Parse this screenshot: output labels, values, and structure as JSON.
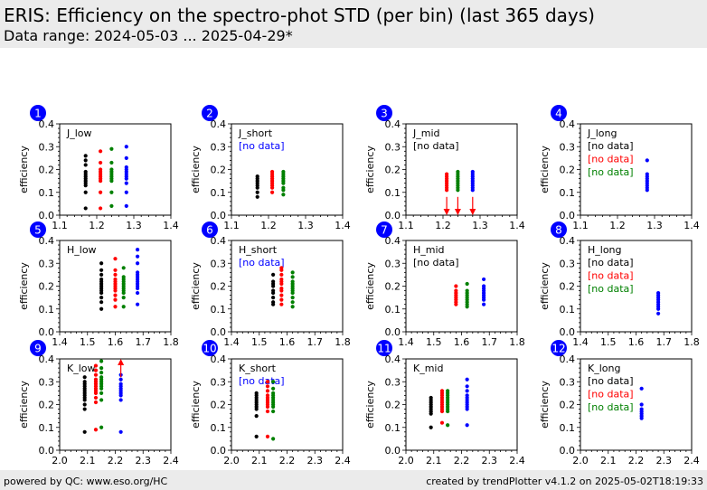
{
  "header": {
    "title": "ERIS: Efficiency on the spectro-phot STD (per bin) (last 365 days)",
    "subtitle": "Data range: 2024-05-03 ... 2025-04-29*"
  },
  "footer": {
    "left": "powered by QC: www.eso.org/HC",
    "right": "created by trendPlotter v4.1.2 on 2025-05-02T18:19:33"
  },
  "colors": {
    "black": "#000000",
    "red": "#ff0000",
    "green": "#008000",
    "blue": "#0000ff",
    "badge": "#0000ff",
    "header_bg": "#ebebeb"
  },
  "chart_data": [
    {
      "type": "scatter",
      "id": 1,
      "label": "J_low",
      "ylabel": "efficiency",
      "xlim": [
        1.1,
        1.4
      ],
      "ylim": [
        0.0,
        0.4
      ],
      "xticks": [
        "1.1",
        "1.2",
        "1.3",
        "1.4"
      ],
      "yticks": [
        "0.0",
        "0.1",
        "0.2",
        "0.3",
        "0.4"
      ],
      "notes": [],
      "series": [
        {
          "color": "black",
          "x": 1.17,
          "y": [
            0.03,
            0.1,
            0.13,
            0.14,
            0.15,
            0.16,
            0.17,
            0.18,
            0.19,
            0.22,
            0.24,
            0.26
          ]
        },
        {
          "color": "red",
          "x": 1.21,
          "y": [
            0.03,
            0.1,
            0.15,
            0.16,
            0.17,
            0.18,
            0.19,
            0.2,
            0.23,
            0.28
          ]
        },
        {
          "color": "green",
          "x": 1.24,
          "y": [
            0.04,
            0.1,
            0.15,
            0.16,
            0.17,
            0.18,
            0.19,
            0.2,
            0.23,
            0.29
          ]
        },
        {
          "color": "blue",
          "x": 1.28,
          "y": [
            0.04,
            0.1,
            0.14,
            0.16,
            0.17,
            0.18,
            0.19,
            0.2,
            0.21,
            0.25,
            0.3
          ]
        }
      ],
      "arrows": []
    },
    {
      "type": "scatter",
      "id": 2,
      "label": "J_short",
      "ylabel": "efficiency",
      "xlim": [
        1.1,
        1.4
      ],
      "ylim": [
        0.0,
        0.4
      ],
      "xticks": [
        "1.1",
        "1.2",
        "1.3",
        "1.4"
      ],
      "yticks": [
        "0.0",
        "0.1",
        "0.2",
        "0.3",
        "0.4"
      ],
      "notes": [
        {
          "text": "[no data]",
          "color": "blue"
        }
      ],
      "series": [
        {
          "color": "black",
          "x": 1.17,
          "y": [
            0.08,
            0.1,
            0.12,
            0.13,
            0.14,
            0.15,
            0.16,
            0.17
          ]
        },
        {
          "color": "red",
          "x": 1.21,
          "y": [
            0.1,
            0.12,
            0.13,
            0.14,
            0.15,
            0.16,
            0.17,
            0.18,
            0.19
          ]
        },
        {
          "color": "green",
          "x": 1.24,
          "y": [
            0.09,
            0.11,
            0.12,
            0.14,
            0.15,
            0.16,
            0.17,
            0.18,
            0.19
          ]
        }
      ],
      "arrows": []
    },
    {
      "type": "scatter",
      "id": 3,
      "label": "J_mid",
      "ylabel": "efficiency",
      "xlim": [
        1.1,
        1.4
      ],
      "ylim": [
        0.0,
        0.4
      ],
      "xticks": [
        "1.1",
        "1.2",
        "1.3",
        "1.4"
      ],
      "yticks": [
        "0.0",
        "0.1",
        "0.2",
        "0.3",
        "0.4"
      ],
      "notes": [
        {
          "text": "[no data]",
          "color": "black"
        }
      ],
      "series": [
        {
          "color": "red",
          "x": 1.21,
          "y": [
            0.11,
            0.12,
            0.13,
            0.14,
            0.15,
            0.16,
            0.17,
            0.18
          ]
        },
        {
          "color": "green",
          "x": 1.24,
          "y": [
            0.11,
            0.12,
            0.13,
            0.14,
            0.15,
            0.16,
            0.17,
            0.18,
            0.19
          ]
        },
        {
          "color": "blue",
          "x": 1.28,
          "y": [
            0.11,
            0.12,
            0.13,
            0.14,
            0.15,
            0.16,
            0.17,
            0.18,
            0.19
          ]
        }
      ],
      "arrows": [
        {
          "color": "red",
          "x": 1.21,
          "from": 0.08,
          "to": 0.0
        },
        {
          "color": "red",
          "x": 1.24,
          "from": 0.08,
          "to": 0.0
        },
        {
          "color": "red",
          "x": 1.28,
          "from": 0.08,
          "to": 0.0
        }
      ]
    },
    {
      "type": "scatter",
      "id": 4,
      "label": "J_long",
      "ylabel": "efficiency",
      "xlim": [
        1.1,
        1.4
      ],
      "ylim": [
        0.0,
        0.4
      ],
      "xticks": [
        "1.1",
        "1.2",
        "1.3",
        "1.4"
      ],
      "yticks": [
        "0.0",
        "0.1",
        "0.2",
        "0.3",
        "0.4"
      ],
      "notes": [
        {
          "text": "[no data]",
          "color": "black"
        },
        {
          "text": "[no data]",
          "color": "red"
        },
        {
          "text": "[no data]",
          "color": "green"
        }
      ],
      "series": [
        {
          "color": "blue",
          "x": 1.28,
          "y": [
            0.11,
            0.12,
            0.13,
            0.14,
            0.15,
            0.16,
            0.17,
            0.18,
            0.24
          ]
        }
      ],
      "arrows": []
    },
    {
      "type": "scatter",
      "id": 5,
      "label": "H_low",
      "ylabel": "efficiency",
      "xlim": [
        1.4,
        1.8
      ],
      "ylim": [
        0.0,
        0.4
      ],
      "xticks": [
        "1.4",
        "1.5",
        "1.6",
        "1.7",
        "1.8"
      ],
      "yticks": [
        "0.0",
        "0.1",
        "0.2",
        "0.3",
        "0.4"
      ],
      "notes": [],
      "series": [
        {
          "color": "black",
          "x": 1.55,
          "y": [
            0.1,
            0.13,
            0.15,
            0.17,
            0.18,
            0.19,
            0.2,
            0.21,
            0.22,
            0.23,
            0.25,
            0.27,
            0.3
          ]
        },
        {
          "color": "red",
          "x": 1.6,
          "y": [
            0.11,
            0.14,
            0.16,
            0.18,
            0.19,
            0.2,
            0.21,
            0.22,
            0.23,
            0.25,
            0.27,
            0.32
          ]
        },
        {
          "color": "green",
          "x": 1.63,
          "y": [
            0.11,
            0.15,
            0.17,
            0.18,
            0.19,
            0.2,
            0.21,
            0.22,
            0.23,
            0.24,
            0.28
          ]
        },
        {
          "color": "blue",
          "x": 1.68,
          "y": [
            0.12,
            0.17,
            0.19,
            0.2,
            0.21,
            0.22,
            0.23,
            0.24,
            0.25,
            0.26,
            0.3,
            0.33,
            0.36
          ]
        }
      ],
      "arrows": []
    },
    {
      "type": "scatter",
      "id": 6,
      "label": "H_short",
      "ylabel": "efficiency",
      "xlim": [
        1.4,
        1.8
      ],
      "ylim": [
        0.0,
        0.4
      ],
      "xticks": [
        "1.4",
        "1.5",
        "1.6",
        "1.7",
        "1.8"
      ],
      "yticks": [
        "0.0",
        "0.1",
        "0.2",
        "0.3",
        "0.4"
      ],
      "notes": [
        {
          "text": "[no data]",
          "color": "blue"
        }
      ],
      "series": [
        {
          "color": "black",
          "x": 1.55,
          "y": [
            0.12,
            0.13,
            0.15,
            0.17,
            0.18,
            0.2,
            0.21,
            0.22,
            0.25
          ]
        },
        {
          "color": "red",
          "x": 1.58,
          "y": [
            0.12,
            0.14,
            0.16,
            0.18,
            0.19,
            0.21,
            0.22,
            0.23,
            0.25,
            0.27,
            0.28
          ]
        },
        {
          "color": "green",
          "x": 1.62,
          "y": [
            0.11,
            0.13,
            0.15,
            0.17,
            0.18,
            0.19,
            0.2,
            0.21,
            0.22,
            0.24,
            0.26
          ]
        }
      ],
      "arrows": []
    },
    {
      "type": "scatter",
      "id": 7,
      "label": "H_mid",
      "ylabel": "efficiency",
      "xlim": [
        1.4,
        1.8
      ],
      "ylim": [
        0.0,
        0.4
      ],
      "xticks": [
        "1.4",
        "1.5",
        "1.6",
        "1.7",
        "1.8"
      ],
      "yticks": [
        "0.0",
        "0.1",
        "0.2",
        "0.3",
        "0.4"
      ],
      "notes": [
        {
          "text": "[no data]",
          "color": "black"
        }
      ],
      "series": [
        {
          "color": "red",
          "x": 1.58,
          "y": [
            0.12,
            0.13,
            0.14,
            0.15,
            0.16,
            0.17,
            0.18,
            0.2
          ]
        },
        {
          "color": "green",
          "x": 1.62,
          "y": [
            0.11,
            0.12,
            0.13,
            0.14,
            0.15,
            0.16,
            0.17,
            0.18,
            0.21
          ]
        },
        {
          "color": "blue",
          "x": 1.68,
          "y": [
            0.12,
            0.14,
            0.15,
            0.16,
            0.17,
            0.18,
            0.19,
            0.2,
            0.23
          ]
        }
      ],
      "arrows": []
    },
    {
      "type": "scatter",
      "id": 8,
      "label": "H_long",
      "ylabel": "efficiency",
      "xlim": [
        1.4,
        1.8
      ],
      "ylim": [
        0.0,
        0.4
      ],
      "xticks": [
        "1.4",
        "1.5",
        "1.6",
        "1.7",
        "1.8"
      ],
      "yticks": [
        "0.0",
        "0.1",
        "0.2",
        "0.3",
        "0.4"
      ],
      "notes": [
        {
          "text": "[no data]",
          "color": "black"
        },
        {
          "text": "[no data]",
          "color": "red"
        },
        {
          "text": "[no data]",
          "color": "green"
        }
      ],
      "series": [
        {
          "color": "blue",
          "x": 1.68,
          "y": [
            0.08,
            0.1,
            0.11,
            0.12,
            0.13,
            0.14,
            0.15,
            0.16,
            0.17
          ]
        }
      ],
      "arrows": []
    },
    {
      "type": "scatter",
      "id": 9,
      "label": "K_low",
      "ylabel": "efficiency",
      "xlim": [
        2.0,
        2.4
      ],
      "ylim": [
        0.0,
        0.4
      ],
      "xticks": [
        "2.0",
        "2.1",
        "2.2",
        "2.3",
        "2.4"
      ],
      "yticks": [
        "0.0",
        "0.1",
        "0.2",
        "0.3",
        "0.4"
      ],
      "notes": [],
      "series": [
        {
          "color": "black",
          "x": 2.09,
          "y": [
            0.08,
            0.18,
            0.2,
            0.22,
            0.23,
            0.24,
            0.25,
            0.26,
            0.27,
            0.28,
            0.29,
            0.3,
            0.32
          ]
        },
        {
          "color": "red",
          "x": 2.13,
          "y": [
            0.09,
            0.21,
            0.23,
            0.25,
            0.26,
            0.27,
            0.28,
            0.29,
            0.3,
            0.31,
            0.33,
            0.35,
            0.37
          ]
        },
        {
          "color": "green",
          "x": 2.15,
          "y": [
            0.1,
            0.22,
            0.25,
            0.27,
            0.28,
            0.29,
            0.3,
            0.31,
            0.32,
            0.34,
            0.36,
            0.39
          ]
        },
        {
          "color": "blue",
          "x": 2.22,
          "y": [
            0.08,
            0.22,
            0.24,
            0.25,
            0.26,
            0.27,
            0.28,
            0.29,
            0.31,
            0.33
          ]
        }
      ],
      "arrows": [
        {
          "color": "red",
          "x": 2.22,
          "from": 0.32,
          "to": 0.4
        }
      ]
    },
    {
      "type": "scatter",
      "id": 10,
      "label": "K_short",
      "ylabel": "efficiency",
      "xlim": [
        2.0,
        2.4
      ],
      "ylim": [
        0.0,
        0.4
      ],
      "xticks": [
        "2.0",
        "2.1",
        "2.2",
        "2.3",
        "2.4"
      ],
      "yticks": [
        "0.0",
        "0.1",
        "0.2",
        "0.3",
        "0.4"
      ],
      "notes": [
        {
          "text": "[no data]",
          "color": "blue"
        }
      ],
      "series": [
        {
          "color": "black",
          "x": 2.09,
          "y": [
            0.06,
            0.15,
            0.18,
            0.19,
            0.2,
            0.21,
            0.22,
            0.23,
            0.24,
            0.25
          ]
        },
        {
          "color": "red",
          "x": 2.13,
          "y": [
            0.06,
            0.17,
            0.19,
            0.2,
            0.21,
            0.22,
            0.23,
            0.24,
            0.26,
            0.28,
            0.3
          ]
        },
        {
          "color": "green",
          "x": 2.15,
          "y": [
            0.05,
            0.17,
            0.19,
            0.2,
            0.21,
            0.22,
            0.23,
            0.24,
            0.25,
            0.27,
            0.3
          ]
        }
      ],
      "arrows": []
    },
    {
      "type": "scatter",
      "id": 11,
      "label": "K_mid",
      "ylabel": "efficiency",
      "xlim": [
        2.0,
        2.4
      ],
      "ylim": [
        0.0,
        0.4
      ],
      "xticks": [
        "2.0",
        "2.1",
        "2.2",
        "2.3",
        "2.4"
      ],
      "yticks": [
        "0.0",
        "0.1",
        "0.2",
        "0.3",
        "0.4"
      ],
      "notes": [],
      "series": [
        {
          "color": "black",
          "x": 2.09,
          "y": [
            0.1,
            0.16,
            0.17,
            0.18,
            0.19,
            0.2,
            0.21,
            0.22,
            0.23
          ]
        },
        {
          "color": "red",
          "x": 2.13,
          "y": [
            0.12,
            0.17,
            0.18,
            0.19,
            0.2,
            0.21,
            0.22,
            0.23,
            0.24,
            0.25,
            0.26
          ]
        },
        {
          "color": "green",
          "x": 2.15,
          "y": [
            0.11,
            0.17,
            0.18,
            0.19,
            0.2,
            0.21,
            0.22,
            0.23,
            0.24,
            0.25,
            0.26
          ]
        },
        {
          "color": "blue",
          "x": 2.22,
          "y": [
            0.11,
            0.18,
            0.19,
            0.2,
            0.21,
            0.22,
            0.23,
            0.24,
            0.26,
            0.28,
            0.31
          ]
        }
      ],
      "arrows": []
    },
    {
      "type": "scatter",
      "id": 12,
      "label": "K_long",
      "ylabel": "efficiency",
      "xlim": [
        2.0,
        2.4
      ],
      "ylim": [
        0.0,
        0.4
      ],
      "xticks": [
        "2.0",
        "2.1",
        "2.2",
        "2.3",
        "2.4"
      ],
      "yticks": [
        "0.0",
        "0.1",
        "0.2",
        "0.3",
        "0.4"
      ],
      "notes": [
        {
          "text": "[no data]",
          "color": "black"
        },
        {
          "text": "[no data]",
          "color": "red"
        },
        {
          "text": "[no data]",
          "color": "green"
        }
      ],
      "series": [
        {
          "color": "blue",
          "x": 2.22,
          "y": [
            0.14,
            0.15,
            0.16,
            0.17,
            0.18,
            0.2,
            0.27
          ]
        }
      ],
      "arrows": []
    }
  ]
}
